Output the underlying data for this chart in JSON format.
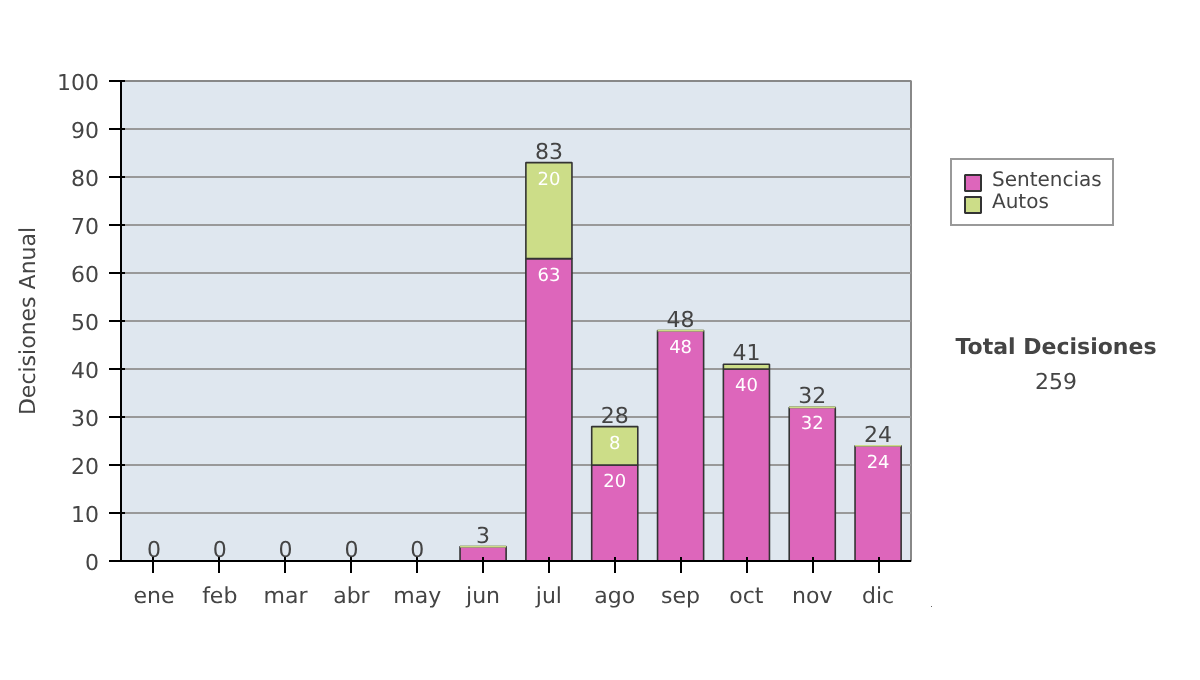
{
  "chart_data": {
    "type": "bar",
    "stacked": true,
    "ylabel": "Decisiones Anual",
    "categories": [
      "ene",
      "feb",
      "mar",
      "abr",
      "may",
      "jun",
      "jul",
      "ago",
      "sep",
      "oct",
      "nov",
      "dic"
    ],
    "series": [
      {
        "name": "Sentencias",
        "color": "#dd66bb",
        "values": [
          0,
          0,
          0,
          0,
          0,
          3,
          63,
          20,
          48,
          40,
          32,
          24
        ],
        "value_labels": [
          null,
          null,
          null,
          null,
          null,
          null,
          "63",
          "20",
          "48",
          "40",
          "32",
          "24"
        ]
      },
      {
        "name": "Autos",
        "color": "#ccdd88",
        "values": [
          0,
          0,
          0,
          0,
          0,
          0,
          20,
          8,
          0,
          1,
          0,
          0
        ],
        "value_labels": [
          null,
          null,
          null,
          null,
          null,
          null,
          "20",
          "8",
          null,
          null,
          null,
          null
        ]
      }
    ],
    "totals": [
      "0",
      "0",
      "0",
      "0",
      "0",
      "3",
      "83",
      "28",
      "48",
      "41",
      "32",
      "24"
    ],
    "ylim": [
      0,
      100
    ],
    "yticks": [
      0,
      10,
      20,
      30,
      40,
      50,
      60,
      70,
      80,
      90,
      100
    ],
    "grid": "y",
    "legend": "right",
    "annotations": [
      "Total Decisiones",
      "259"
    ]
  }
}
